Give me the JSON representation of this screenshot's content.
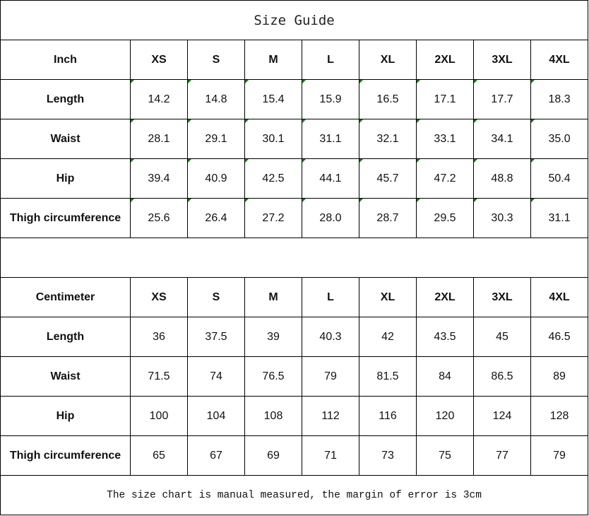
{
  "title": "Size Guide",
  "sizes": [
    "XS",
    "S",
    "M",
    "L",
    "XL",
    "2XL",
    "3XL",
    "4XL"
  ],
  "inch": {
    "header": "Inch",
    "rows": [
      {
        "label": "Length",
        "values": [
          "14.2",
          "14.8",
          "15.4",
          "15.9",
          "16.5",
          "17.1",
          "17.7",
          "18.3"
        ]
      },
      {
        "label": "Waist",
        "values": [
          "28.1",
          "29.1",
          "30.1",
          "31.1",
          "32.1",
          "33.1",
          "34.1",
          "35.0"
        ]
      },
      {
        "label": "Hip",
        "values": [
          "39.4",
          "40.9",
          "42.5",
          "44.1",
          "45.7",
          "47.2",
          "48.8",
          "50.4"
        ]
      },
      {
        "label": "Thigh circumference",
        "values": [
          "25.6",
          "26.4",
          "27.2",
          "28.0",
          "28.7",
          "29.5",
          "30.3",
          "31.1"
        ]
      }
    ]
  },
  "cm": {
    "header": "Centimeter",
    "rows": [
      {
        "label": "Length",
        "values": [
          "36",
          "37.5",
          "39",
          "40.3",
          "42",
          "43.5",
          "45",
          "46.5"
        ]
      },
      {
        "label": "Waist",
        "values": [
          "71.5",
          "74",
          "76.5",
          "79",
          "81.5",
          "84",
          "86.5",
          "89"
        ]
      },
      {
        "label": "Hip",
        "values": [
          "100",
          "104",
          "108",
          "112",
          "116",
          "120",
          "124",
          "128"
        ]
      },
      {
        "label": "Thigh circumference",
        "values": [
          "65",
          "67",
          "69",
          "71",
          "73",
          "75",
          "77",
          "79"
        ]
      }
    ]
  },
  "note": "The size chart is manual measured, the margin of error is 3cm",
  "colors": {
    "cell_marker": "#0a7a0a",
    "border": "#000000"
  }
}
